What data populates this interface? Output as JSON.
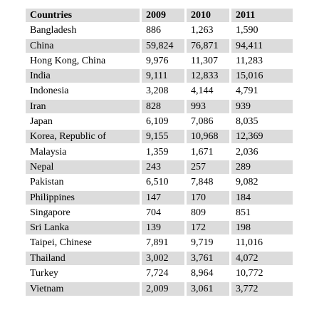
{
  "table": {
    "headers": [
      "Countries",
      "2009",
      "2010",
      "2011"
    ],
    "rows": [
      [
        "Bangladesh",
        "886",
        "1,263",
        "1,590"
      ],
      [
        "China",
        "59,824",
        "76,871",
        "94,411"
      ],
      [
        "Hong Kong, China",
        "9,976",
        "11,307",
        "11,283"
      ],
      [
        "India",
        "9,111",
        "12,833",
        "15,016"
      ],
      [
        "Indonesia",
        "3,208",
        "4,144",
        "4,791"
      ],
      [
        "Iran",
        "828",
        "993",
        "939"
      ],
      [
        "Japan",
        "6,109",
        "7,086",
        "8,035"
      ],
      [
        "Korea, Republic of",
        "9,155",
        "10,968",
        "12,369"
      ],
      [
        "Malaysia",
        "1,359",
        "1,671",
        "2,036"
      ],
      [
        "Nepal",
        "243",
        "257",
        "289"
      ],
      [
        "Pakistan",
        "6,510",
        "7,848",
        "9,082"
      ],
      [
        "Philippines",
        "147",
        "170",
        "184"
      ],
      [
        "Singapore",
        "704",
        "809",
        "851"
      ],
      [
        "Sri Lanka",
        "139",
        "172",
        "198"
      ],
      [
        "Taipei, Chinese",
        "7,891",
        "9,719",
        "11,016"
      ],
      [
        "Thailand",
        "3,002",
        "3,761",
        "4,072"
      ],
      [
        "Turkey",
        "7,724",
        "8,964",
        "10,772"
      ],
      [
        "Vietnam",
        "2,009",
        "3,061",
        "3,772"
      ]
    ]
  },
  "colors": {
    "shaded_row": "#dcdcdc",
    "plain_row": "#ffffff",
    "text": "#000000"
  }
}
